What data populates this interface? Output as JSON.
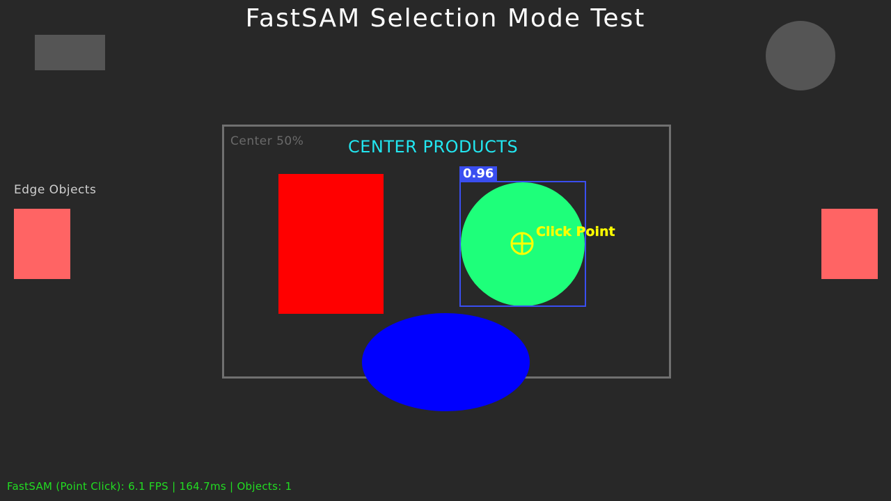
{
  "title": "FastSAM Selection Mode Test",
  "edge_region": {
    "label": "Edge Objects",
    "object_color": "#ff6464"
  },
  "center_region": {
    "label": "Center 50%",
    "heading": "CENTER PRODUCTS"
  },
  "objects": {
    "red_rect_color": "#ff0000",
    "green_circle_color": "#1eff7a",
    "blue_ellipse_color": "#0000ff",
    "background_shape_color": "#555555"
  },
  "selection": {
    "score": "0.96",
    "box_color": "#3a4ef0",
    "click_label": "Click Point",
    "click_icon": "crosshair-icon",
    "click_color": "#ffff00"
  },
  "status": {
    "text": "FastSAM (Point Click): 6.1 FPS | 164.7ms | Objects: 1"
  }
}
